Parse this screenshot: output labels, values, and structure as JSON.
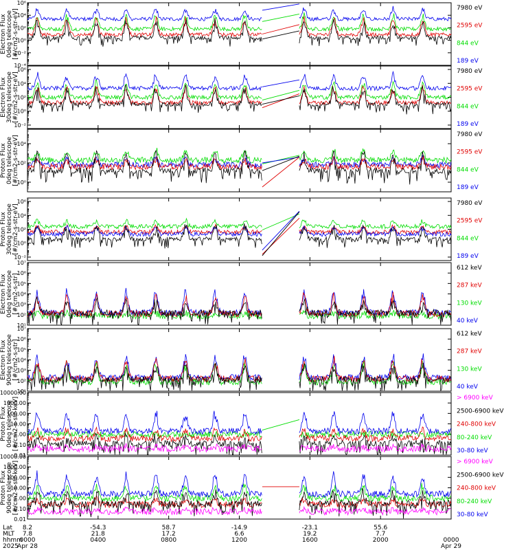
{
  "colors": {
    "black": "#000000",
    "red": "#e00000",
    "green": "#00dd00",
    "blue": "#0000ee",
    "magenta": "#ff00ff"
  },
  "chart_data": [
    {
      "type": "line",
      "ylabel": [
        "TED",
        "Electron Flux",
        "0deg telescope",
        "[#/cm2-s-str-eV]"
      ],
      "yticks": [
        "10⁻⁴",
        "10⁻²",
        "10⁰",
        "10²",
        "10⁴",
        "10⁶"
      ],
      "ytick_values": [
        -4,
        -2,
        0,
        2,
        4,
        6
      ],
      "ylim": [
        -4,
        6
      ],
      "log": true,
      "legend": [
        {
          "label": "7980 eV",
          "color": "black"
        },
        {
          "label": "2595 eV",
          "color": "red"
        },
        {
          "label": "844 eV",
          "color": "green"
        },
        {
          "label": "189 eV",
          "color": "blue"
        }
      ],
      "series": [
        {
          "color": "blue",
          "baseline": 3.4,
          "spike": 1.8
        },
        {
          "color": "green",
          "baseline": 1.8,
          "spike": 2.5
        },
        {
          "color": "red",
          "baseline": 0.9,
          "spike": 2.8
        },
        {
          "color": "black",
          "baseline": 0.4,
          "spike": 3.0
        }
      ],
      "gap_left": [
        4.8,
        3.0,
        1.0,
        0.2
      ],
      "gap_right": [
        5.8,
        4.2,
        2.5,
        1.5
      ]
    },
    {
      "type": "line",
      "ylabel": [
        "TED",
        "Electron Flux",
        "30deg telescope",
        "[#/cm2-s-str-eV]"
      ],
      "yticks": [
        "10⁻²",
        "10⁰",
        "10²",
        "10⁴",
        "10⁶"
      ],
      "ytick_values": [
        -2,
        0,
        2,
        4,
        6
      ],
      "ylim": [
        -2.5,
        6.5
      ],
      "log": true,
      "legend": [
        {
          "label": "7980 eV",
          "color": "black"
        },
        {
          "label": "2595 eV",
          "color": "red"
        },
        {
          "label": "844 eV",
          "color": "green"
        },
        {
          "label": "189 eV",
          "color": "blue"
        }
      ],
      "series": [
        {
          "color": "blue",
          "baseline": 3.3,
          "spike": 2.2
        },
        {
          "color": "green",
          "baseline": 2.0,
          "spike": 2.4
        },
        {
          "color": "red",
          "baseline": 1.2,
          "spike": 2.6
        },
        {
          "color": "black",
          "baseline": 1.0,
          "spike": 2.8
        }
      ],
      "gap_left": [
        3.5,
        1.6,
        0.5,
        1.0
      ],
      "gap_right": [
        4.5,
        3.0,
        2.5,
        2.2
      ]
    },
    {
      "type": "line",
      "ylabel": [
        "TED",
        "Proton Flux",
        "0deg telescope",
        "[#/cm2-s-str-eV]"
      ],
      "yticks": [
        "10⁰",
        "10²",
        "10⁴"
      ],
      "ytick_values": [
        0,
        2,
        4
      ],
      "ylim": [
        -1,
        5.5
      ],
      "log": true,
      "legend": [
        {
          "label": "7980 eV",
          "color": "black"
        },
        {
          "label": "2595 eV",
          "color": "red"
        },
        {
          "label": "844 eV",
          "color": "green"
        },
        {
          "label": "189 eV",
          "color": "blue"
        }
      ],
      "series": [
        {
          "color": "green",
          "baseline": 2.3,
          "spike": 1.2
        },
        {
          "color": "blue",
          "baseline": 1.8,
          "spike": 0.8
        },
        {
          "color": "red",
          "baseline": 1.6,
          "spike": 0.9
        },
        {
          "color": "black",
          "baseline": 1.2,
          "spike": 2.2
        }
      ],
      "gap_left": [
        1.9,
        2.0,
        -0.5,
        1.2
      ],
      "gap_right": [
        2.8,
        2.6,
        2.6,
        2.7
      ]
    },
    {
      "type": "line",
      "ylabel": [
        "TED",
        "Proton Flux",
        "30deg telescope",
        "[#/cm2-s-str-eV]"
      ],
      "yticks": [
        "10⁻²",
        "10⁰",
        "10²",
        "10⁴",
        "10⁶"
      ],
      "ytick_values": [
        -2,
        0,
        2,
        4,
        6
      ],
      "ylim": [
        -2.5,
        6.5
      ],
      "log": true,
      "legend": [
        {
          "label": "7980 eV",
          "color": "black"
        },
        {
          "label": "2595 eV",
          "color": "red"
        },
        {
          "label": "844 eV",
          "color": "green"
        },
        {
          "label": "189 eV",
          "color": "blue"
        }
      ],
      "series": [
        {
          "color": "green",
          "baseline": 2.4,
          "spike": 1.0
        },
        {
          "color": "red",
          "baseline": 1.6,
          "spike": 1.0
        },
        {
          "color": "blue",
          "baseline": 1.3,
          "spike": 1.2
        },
        {
          "color": "black",
          "baseline": 0.6,
          "spike": 2.4
        }
      ],
      "gap_left": [
        1.9,
        -1.6,
        -1.0,
        -1.8
      ],
      "gap_right": [
        4.2,
        3.6,
        4.6,
        4.5
      ]
    },
    {
      "type": "line",
      "ylabel": [
        "MEPED",
        "Electron Flux",
        "0deg telescope",
        "[#/cm2-s-str]"
      ],
      "yticks": [
        "10¹",
        "10²",
        "10³",
        "10⁴",
        "10⁵",
        "10⁶",
        "10⁷"
      ],
      "ytick_values": [
        1,
        2,
        3,
        4,
        5,
        6,
        7
      ],
      "ylim": [
        1,
        7
      ],
      "log": true,
      "legend": [
        {
          "label": "612 keV",
          "color": "black"
        },
        {
          "label": "287 keV",
          "color": "red"
        },
        {
          "label": "130 keV",
          "color": "green"
        },
        {
          "label": "40 keV",
          "color": "blue"
        }
      ],
      "series": [
        {
          "color": "green",
          "baseline": 1.9,
          "spike": 0.3
        },
        {
          "color": "blue",
          "baseline": 2.2,
          "spike": 2.4
        },
        {
          "color": "red",
          "baseline": 2.1,
          "spike": 2.0
        },
        {
          "color": "black",
          "baseline": 2.2,
          "spike": 1.4
        }
      ],
      "gap_left": null,
      "gap_right": null
    },
    {
      "type": "line",
      "ylabel": [
        "MEPED",
        "Electron Flux",
        "90deg telescope",
        "[#/cm2-s-str]"
      ],
      "yticks": [
        "10¹",
        "10²",
        "10³",
        "10⁴",
        "10⁵",
        "10⁶",
        "10⁷"
      ],
      "ytick_values": [
        1,
        2,
        3,
        4,
        5,
        6,
        7
      ],
      "ylim": [
        1,
        7
      ],
      "log": true,
      "legend": [
        {
          "label": "612 keV",
          "color": "black"
        },
        {
          "label": "287 keV",
          "color": "red"
        },
        {
          "label": "130 keV",
          "color": "green"
        },
        {
          "label": "40 keV",
          "color": "blue"
        }
      ],
      "series": [
        {
          "color": "green",
          "baseline": 1.9,
          "spike": 2.0
        },
        {
          "color": "blue",
          "baseline": 2.3,
          "spike": 2.3
        },
        {
          "color": "red",
          "baseline": 2.2,
          "spike": 2.0
        },
        {
          "color": "black",
          "baseline": 2.1,
          "spike": 1.6
        }
      ],
      "gap_left": null,
      "gap_right": null
    },
    {
      "type": "line",
      "ylabel": [
        "MEPED",
        "Proton Flux",
        "0deg telescope",
        "[#/cm2-s-str-keV]"
      ],
      "yticks": [
        "0.01",
        "0.10",
        "1.00",
        "10.00",
        "100.00",
        "1000.00",
        "10000.00"
      ],
      "ytick_values": [
        -2,
        -1,
        0,
        1,
        2,
        3,
        4
      ],
      "ylim": [
        -2,
        4
      ],
      "log": true,
      "legend": [
        {
          "label": "> 6900 keV",
          "color": "magenta"
        },
        {
          "label": "2500-6900 keV",
          "color": "black"
        },
        {
          "label": "240-800 keV",
          "color": "red"
        },
        {
          "label": "80-240 keV",
          "color": "green"
        },
        {
          "label": "30-80 keV",
          "color": "blue"
        }
      ],
      "series": [
        {
          "color": "green",
          "baseline": 0.0,
          "spike": 0.0
        },
        {
          "color": "blue",
          "baseline": 0.3,
          "spike": 2.0
        },
        {
          "color": "red",
          "baseline": -0.4,
          "spike": 1.0
        },
        {
          "color": "black",
          "baseline": -0.9,
          "spike": 0.9
        },
        {
          "color": "magenta",
          "baseline": -1.4,
          "spike": 0.3
        }
      ],
      "gap_left": [
        0.4
      ],
      "gap_right": [
        1.4
      ]
    },
    {
      "type": "line",
      "ylabel": [
        "MEPED",
        "Proton Flux",
        "90deg telescope",
        "[#/cm2-s-str-keV]"
      ],
      "yticks": [
        "0.01",
        "0.10",
        "1.00",
        "10.00",
        "100.00",
        "1000.00",
        "10000.00"
      ],
      "ytick_values": [
        -2,
        -1,
        0,
        1,
        2,
        3,
        4
      ],
      "ylim": [
        -2,
        4
      ],
      "log": true,
      "legend": [
        {
          "label": "> 6900 keV",
          "color": "magenta"
        },
        {
          "label": "2500-6900 keV",
          "color": "black"
        },
        {
          "label": "240-800 keV",
          "color": "red"
        },
        {
          "label": "80-240 keV",
          "color": "green"
        },
        {
          "label": "30-80 keV",
          "color": "blue"
        }
      ],
      "series": [
        {
          "color": "red",
          "baseline": -0.6,
          "spike": 0.6
        },
        {
          "color": "green",
          "baseline": 0.0,
          "spike": 1.4
        },
        {
          "color": "blue",
          "baseline": 0.4,
          "spike": 2.1
        },
        {
          "color": "black",
          "baseline": -0.5,
          "spike": 1.4
        },
        {
          "color": "magenta",
          "baseline": -1.3,
          "spike": 0.3
        }
      ],
      "gap_left": [
        1.1
      ],
      "gap_right": [
        1.1
      ]
    }
  ],
  "time_axis": {
    "row_labels": [
      "Lat",
      "MLT",
      "hhmm",
      "2025"
    ],
    "columns": [
      {
        "lat": "8.2",
        "mlt": "7.8",
        "hhmm": "0000",
        "date": "Apr 28"
      },
      {
        "lat": "-54.3",
        "mlt": "21.8",
        "hhmm": "0400",
        "date": ""
      },
      {
        "lat": "58.7",
        "mlt": "17.2",
        "hhmm": "0800",
        "date": ""
      },
      {
        "lat": "-14.9",
        "mlt": "6.6",
        "hhmm": "1200",
        "date": ""
      },
      {
        "lat": "-23.1",
        "mlt": "19.2",
        "hhmm": "1600",
        "date": ""
      },
      {
        "lat": "55.6",
        "mlt": "7.7",
        "hhmm": "2000",
        "date": ""
      },
      {
        "lat": "",
        "mlt": "",
        "hhmm": "0000",
        "date": "Apr 29"
      }
    ],
    "x_hours": [
      0,
      4,
      8,
      12,
      16,
      20,
      24
    ],
    "data_gap_hours": [
      13.3,
      15.4
    ]
  }
}
